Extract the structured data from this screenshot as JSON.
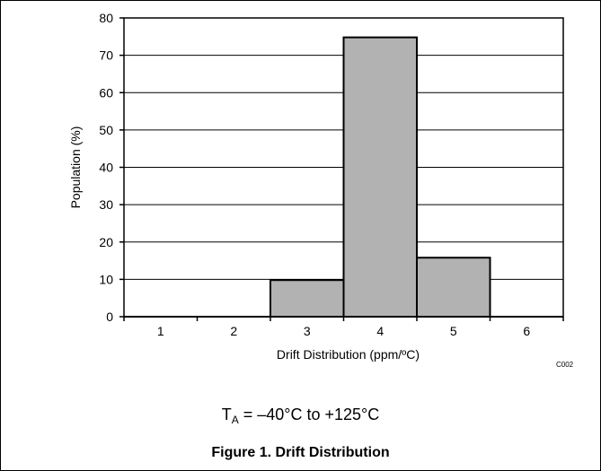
{
  "chart_data": {
    "type": "bar",
    "categories": [
      "1",
      "2",
      "3",
      "4",
      "5",
      "6"
    ],
    "values": [
      0,
      0,
      9.8,
      74.8,
      15.8,
      0
    ],
    "xlabel": "Drift Distribution (ppm/ºC)",
    "ylabel": "Population (%)",
    "ylim": [
      0,
      80
    ],
    "yticks": [
      0,
      10,
      20,
      30,
      40,
      50,
      60,
      70,
      80
    ],
    "grid": true,
    "bar_color": "#b2b2b2"
  },
  "figure_code": "C002",
  "condition": {
    "prefix": "T",
    "subscript": "A",
    "text": " = –40°C to +125°C"
  },
  "caption": "Figure 1. Drift Distribution"
}
